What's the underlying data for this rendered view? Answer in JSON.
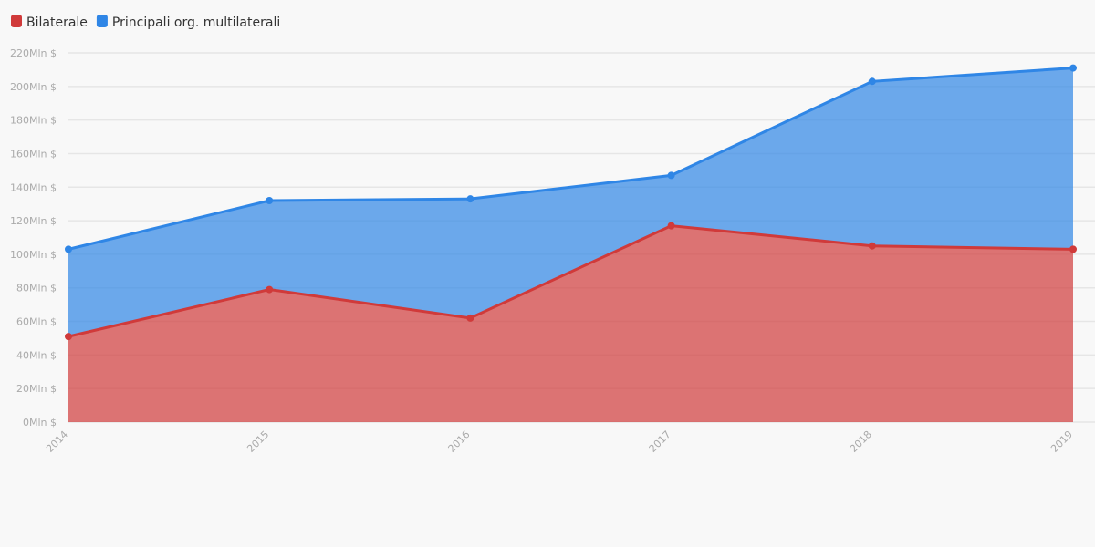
{
  "chart_data": {
    "type": "stacked-area",
    "categories": [
      "2014",
      "2015",
      "2016",
      "2017",
      "2018",
      "2019"
    ],
    "series": [
      {
        "name": "Bilaterale",
        "color": "#d03a3a",
        "values": [
          51,
          79,
          62,
          117,
          105,
          103
        ]
      },
      {
        "name": "Principali org. multilaterali",
        "color": "#2f86e6",
        "values": [
          52,
          53,
          71,
          30,
          98,
          108
        ]
      }
    ],
    "ylim": [
      0,
      220
    ],
    "yticks": [
      {
        "value": 0,
        "label": "0Mln $"
      },
      {
        "value": 20,
        "label": "20Mln $"
      },
      {
        "value": 40,
        "label": "40Mln $"
      },
      {
        "value": 60,
        "label": "60Mln $"
      },
      {
        "value": 80,
        "label": "80Mln $"
      },
      {
        "value": 100,
        "label": "100Mln $"
      },
      {
        "value": 120,
        "label": "120Mln $"
      },
      {
        "value": 140,
        "label": "140Mln $"
      },
      {
        "value": 160,
        "label": "160Mln $"
      },
      {
        "value": 180,
        "label": "180Mln $"
      },
      {
        "value": 200,
        "label": "200Mln $"
      },
      {
        "value": 220,
        "label": "220Mln $"
      }
    ],
    "grid": true
  }
}
